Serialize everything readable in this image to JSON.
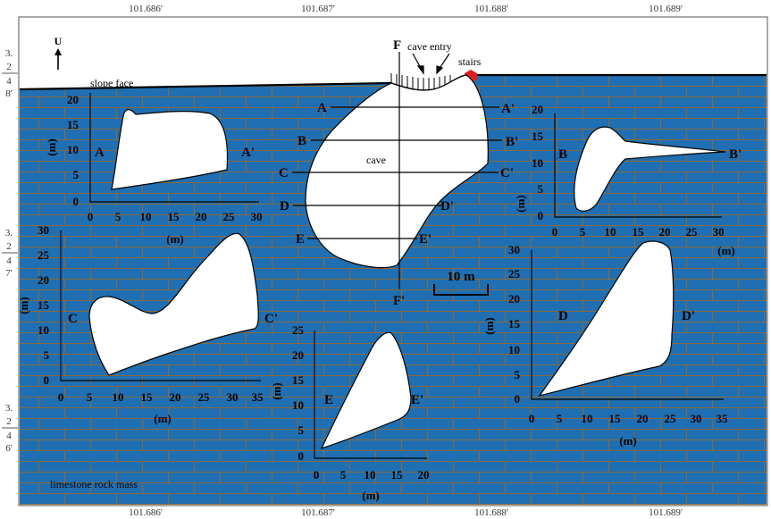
{
  "frame": {
    "coords_top": [
      "101.686'",
      "101.687'",
      "101.688'",
      "101.689'"
    ],
    "coords_bottom": [
      "101.686'",
      "101.687'",
      "101.688'",
      "101.689'"
    ],
    "side_blocks": [
      [
        "3.",
        "2",
        "4",
        "8'"
      ],
      [
        "3.",
        "2",
        "4",
        "7'"
      ],
      [
        "3.",
        "2",
        "4",
        "6'"
      ]
    ]
  },
  "map": {
    "north_label": "U",
    "slope_face": "slope face",
    "cave_entry": "cave entry",
    "stairs": "stairs",
    "cave": "cave",
    "rock_mass": "limestone rock mass",
    "scale_bar": "10 m",
    "colors": {
      "rock": "#1f6fb2",
      "joints": "#8a6a3c",
      "stairs": "#e02020"
    },
    "section_lines": [
      {
        "start": "A",
        "end": "A'"
      },
      {
        "start": "B",
        "end": "B'"
      },
      {
        "start": "C",
        "end": "C'"
      },
      {
        "start": "D",
        "end": "D'"
      },
      {
        "start": "E",
        "end": "E'"
      }
    ],
    "long_section": {
      "start": "F",
      "end": "F'"
    }
  },
  "profiles": [
    {
      "id": "A",
      "start": "A",
      "end": "A'",
      "unit": "(m)",
      "x_ticks": [
        "0",
        "5",
        "10",
        "15",
        "20",
        "25",
        "30"
      ],
      "y_ticks": [
        "0",
        "5",
        "10",
        "15",
        "20"
      ]
    },
    {
      "id": "B",
      "start": "B",
      "end": "B'",
      "unit": "(m)",
      "x_ticks": [
        "0",
        "5",
        "10",
        "15",
        "20",
        "25",
        "30"
      ],
      "y_ticks": [
        "0",
        "5",
        "10",
        "15",
        "20"
      ]
    },
    {
      "id": "C",
      "start": "C",
      "end": "C'",
      "unit": "(m)",
      "x_ticks": [
        "0",
        "5",
        "10",
        "15",
        "20",
        "25",
        "30",
        "35"
      ],
      "y_ticks": [
        "0",
        "5",
        "10",
        "15",
        "20",
        "25",
        "30"
      ]
    },
    {
      "id": "D",
      "start": "D",
      "end": "D'",
      "unit": "(m)",
      "x_ticks": [
        "0",
        "5",
        "10",
        "15",
        "20",
        "25",
        "30",
        "35"
      ],
      "y_ticks": [
        "0",
        "5",
        "10",
        "15",
        "20",
        "25",
        "30"
      ]
    },
    {
      "id": "E",
      "start": "E",
      "end": "E'",
      "unit": "(m)",
      "x_ticks": [
        "0",
        "5",
        "10",
        "15",
        "20"
      ],
      "y_ticks": [
        "0",
        "5",
        "10",
        "15",
        "20",
        "25"
      ]
    }
  ]
}
